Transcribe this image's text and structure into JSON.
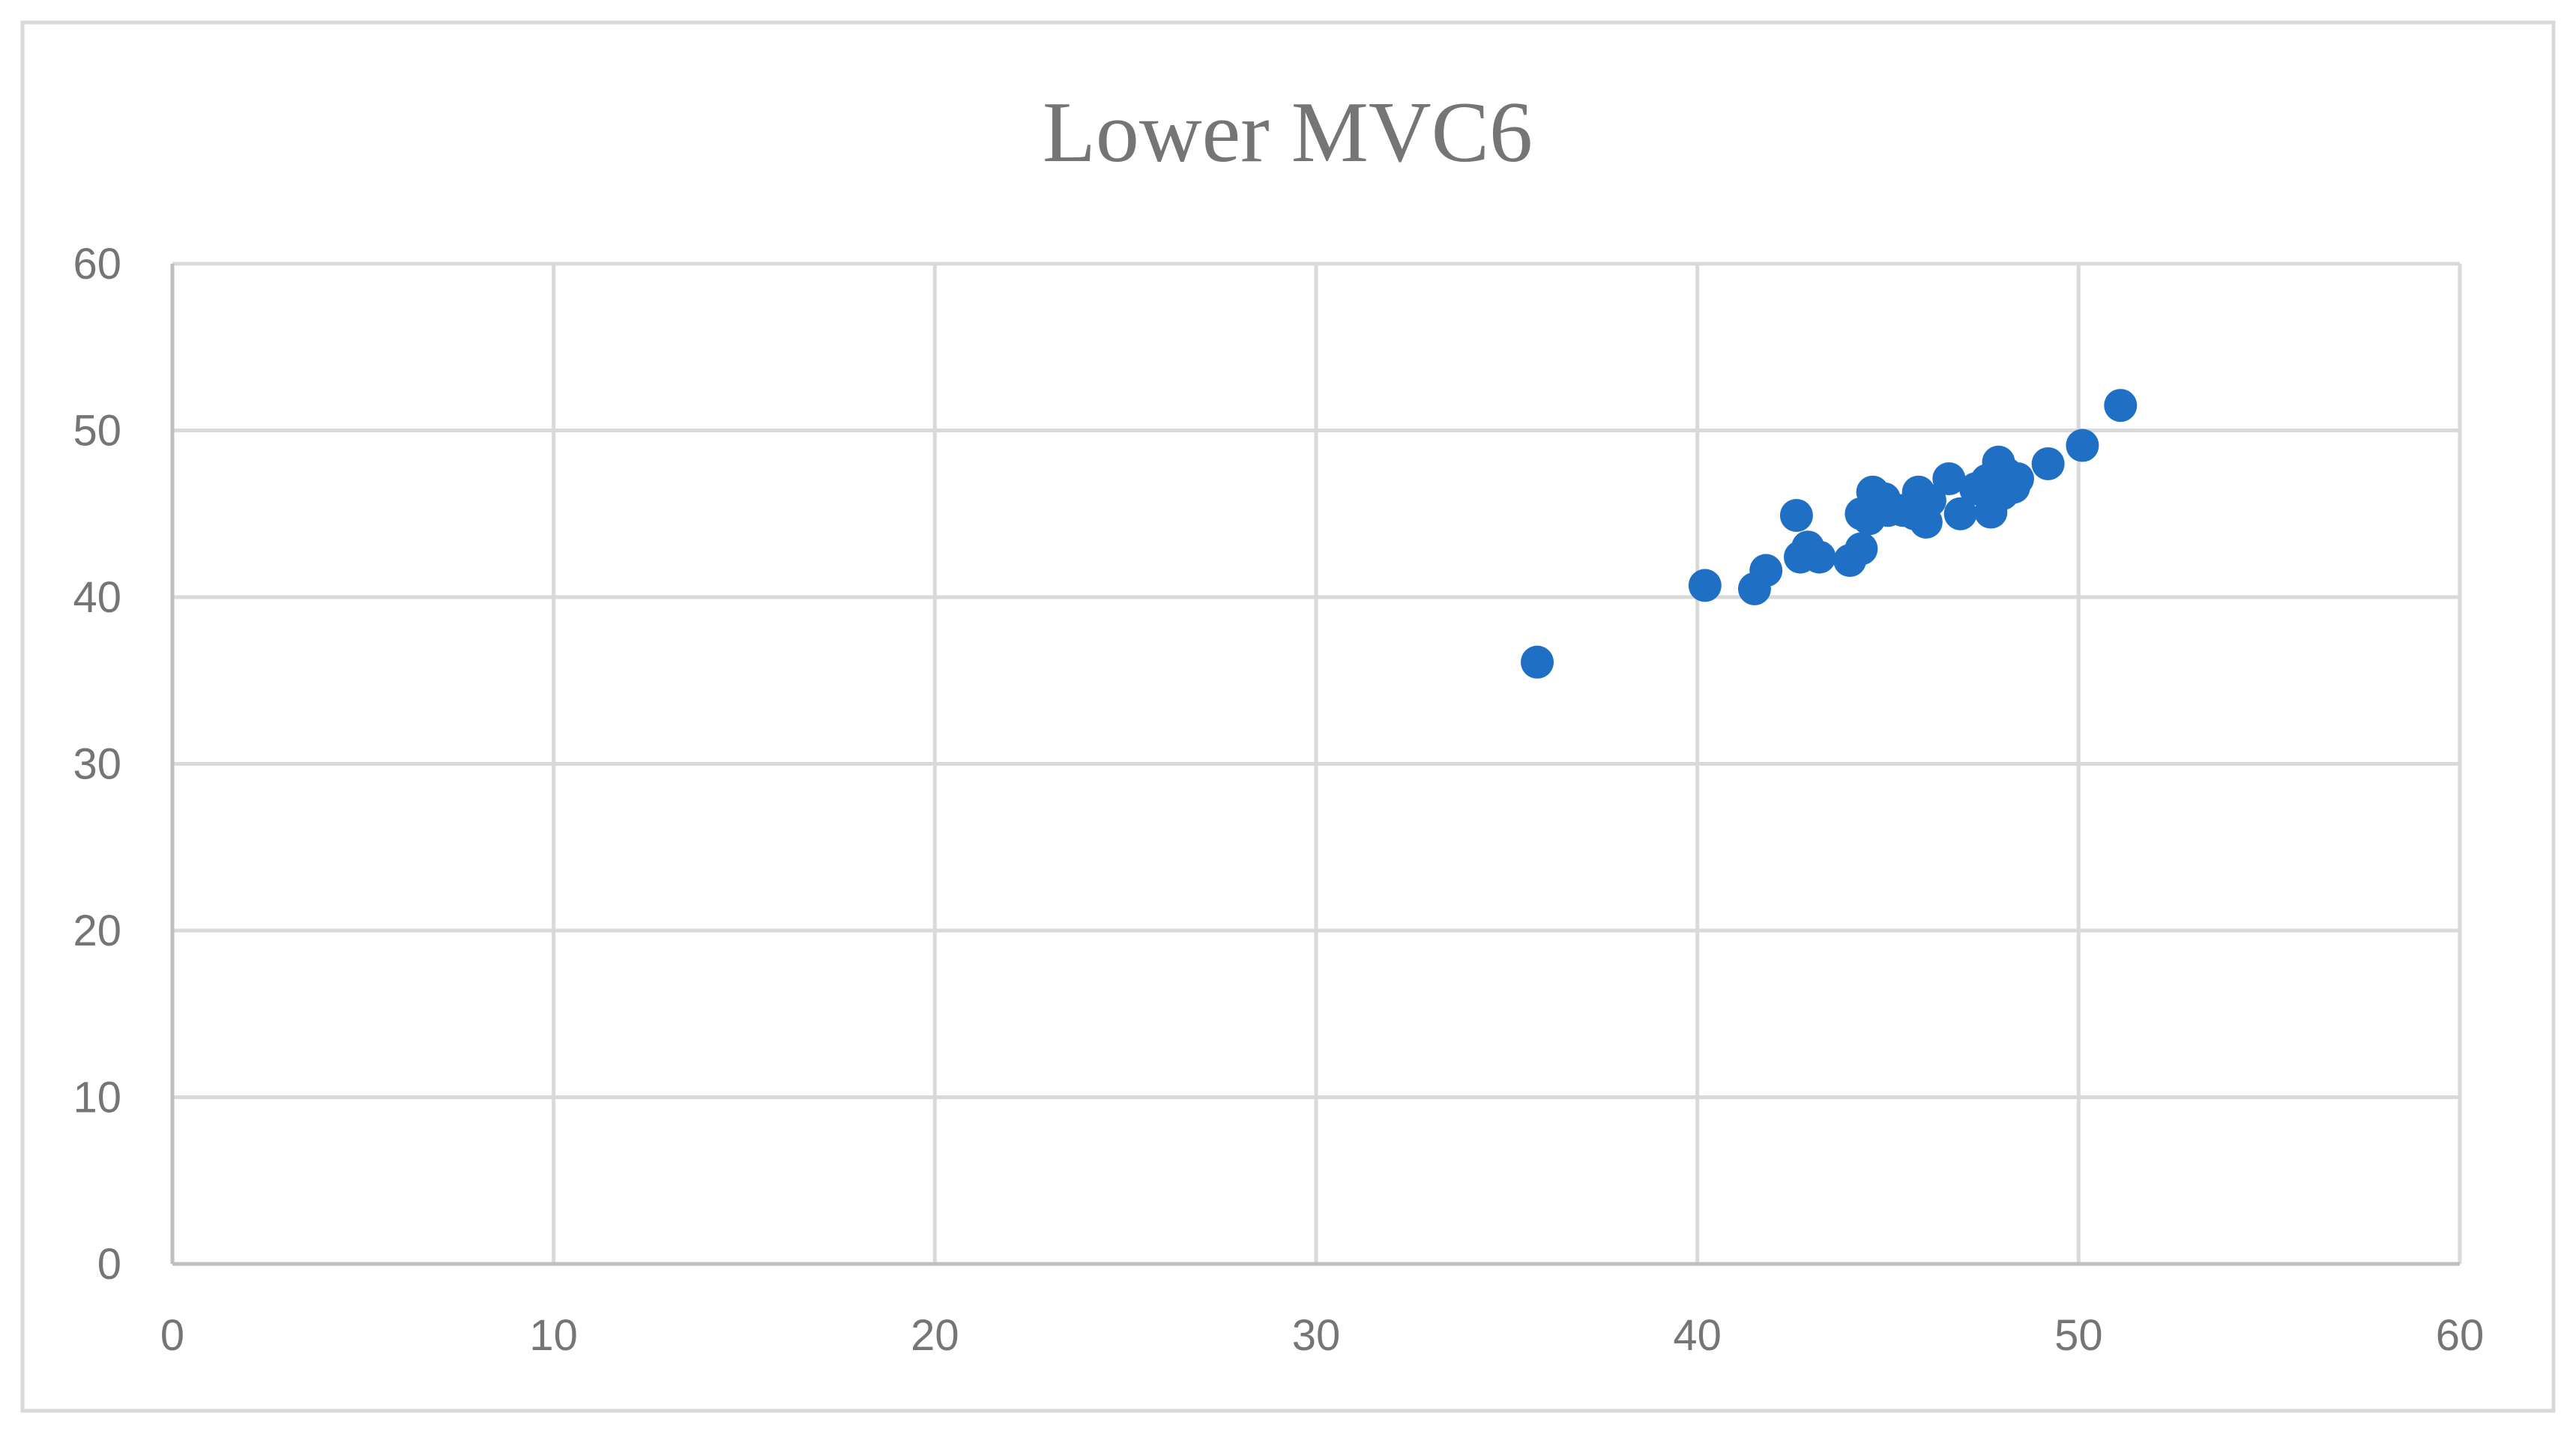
{
  "chart_data": {
    "type": "scatter",
    "title": "Lower MVC6",
    "xlabel": "",
    "ylabel": "",
    "xlim": [
      0,
      60
    ],
    "ylim": [
      0,
      60
    ],
    "x_ticks": [
      "0",
      "10",
      "20",
      "30",
      "40",
      "50",
      "60"
    ],
    "y_ticks": [
      "0",
      "10",
      "20",
      "30",
      "40",
      "50",
      "60"
    ],
    "grid": true,
    "legend": "none",
    "marker_color": "#1f6fc5",
    "points": [
      {
        "x": 35.8,
        "y": 36.1
      },
      {
        "x": 40.2,
        "y": 40.7
      },
      {
        "x": 41.5,
        "y": 40.5
      },
      {
        "x": 41.8,
        "y": 41.6
      },
      {
        "x": 42.6,
        "y": 44.9
      },
      {
        "x": 42.7,
        "y": 42.4
      },
      {
        "x": 42.9,
        "y": 43.0
      },
      {
        "x": 43.2,
        "y": 42.4
      },
      {
        "x": 44.0,
        "y": 42.2
      },
      {
        "x": 44.3,
        "y": 42.9
      },
      {
        "x": 44.3,
        "y": 45.0
      },
      {
        "x": 44.5,
        "y": 44.7
      },
      {
        "x": 44.6,
        "y": 46.3
      },
      {
        "x": 44.9,
        "y": 45.9
      },
      {
        "x": 45.0,
        "y": 45.2
      },
      {
        "x": 45.4,
        "y": 45.2
      },
      {
        "x": 45.7,
        "y": 45.0
      },
      {
        "x": 45.8,
        "y": 46.3
      },
      {
        "x": 46.0,
        "y": 44.5
      },
      {
        "x": 46.1,
        "y": 45.8
      },
      {
        "x": 46.6,
        "y": 47.1
      },
      {
        "x": 46.9,
        "y": 45.0
      },
      {
        "x": 47.3,
        "y": 46.5
      },
      {
        "x": 47.6,
        "y": 47.0
      },
      {
        "x": 47.7,
        "y": 45.1
      },
      {
        "x": 47.9,
        "y": 48.1
      },
      {
        "x": 48.0,
        "y": 46.2
      },
      {
        "x": 48.1,
        "y": 47.4
      },
      {
        "x": 48.3,
        "y": 46.6
      },
      {
        "x": 48.4,
        "y": 47.1
      },
      {
        "x": 49.2,
        "y": 48.0
      },
      {
        "x": 50.1,
        "y": 49.1
      },
      {
        "x": 51.1,
        "y": 51.5
      }
    ]
  }
}
